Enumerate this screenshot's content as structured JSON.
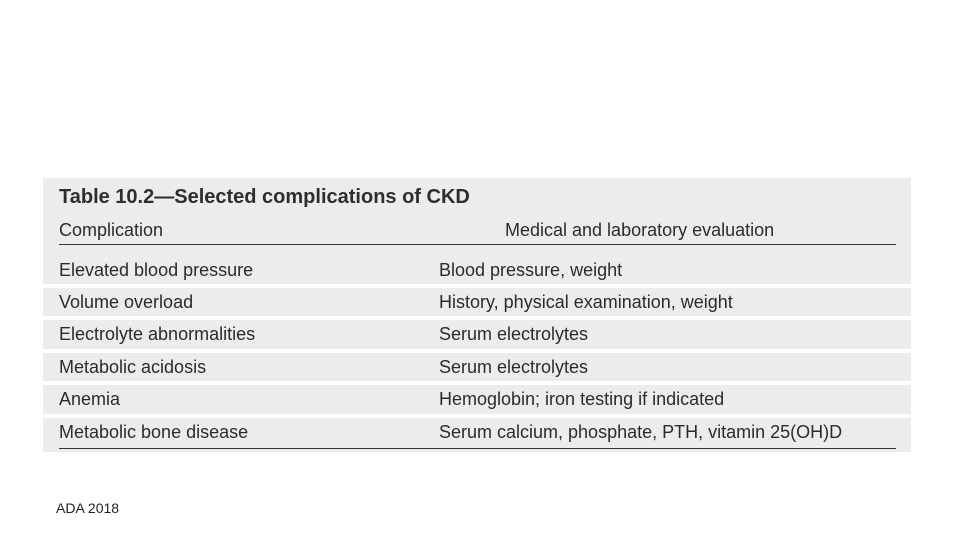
{
  "table": {
    "title": "Table 10.2—Selected complications of CKD",
    "headers": [
      "Complication",
      "Medical and laboratory evaluation"
    ],
    "rows": [
      {
        "complication": "Elevated blood pressure",
        "evaluation": "Blood pressure, weight"
      },
      {
        "complication": "Volume overload",
        "evaluation": "History, physical examination, weight"
      },
      {
        "complication": "Electrolyte abnormalities",
        "evaluation": "Serum electrolytes"
      },
      {
        "complication": "Metabolic acidosis",
        "evaluation": "Serum electrolytes"
      },
      {
        "complication": "Anemia",
        "evaluation": "Hemoglobin; iron testing if indicated"
      },
      {
        "complication": "Metabolic bone disease",
        "evaluation": "Serum calcium, phosphate, PTH, vitamin 25(OH)D"
      }
    ]
  },
  "source": "ADA 2018"
}
